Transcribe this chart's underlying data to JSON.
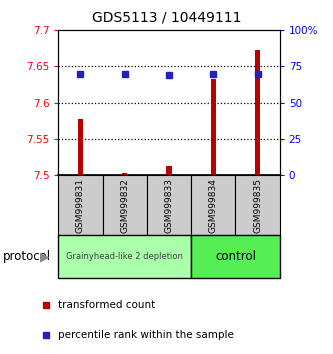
{
  "title": "GDS5113 / 10449111",
  "samples": [
    "GSM999831",
    "GSM999832",
    "GSM999833",
    "GSM999834",
    "GSM999835"
  ],
  "transformed_counts": [
    7.578,
    7.503,
    7.513,
    7.633,
    7.673
  ],
  "percentile_ranks": [
    70,
    70,
    69,
    70,
    70
  ],
  "ylim_left": [
    7.5,
    7.7
  ],
  "ylim_right": [
    0,
    100
  ],
  "yticks_left": [
    7.5,
    7.55,
    7.6,
    7.65,
    7.7
  ],
  "ytick_labels_left": [
    "7.5",
    "7.55",
    "7.6",
    "7.65",
    "7.7"
  ],
  "yticks_right": [
    0,
    25,
    50,
    75,
    100
  ],
  "ytick_labels_right": [
    "0",
    "25",
    "50",
    "75",
    "100%"
  ],
  "bar_color": "#bb0000",
  "dot_color": "#2222bb",
  "group1_label": "Grainyhead-like 2 depletion",
  "group2_label": "control",
  "group1_bg": "#aaffaa",
  "group2_bg": "#55ee55",
  "sample_bg": "#cccccc",
  "legend_bar_label": "transformed count",
  "legend_dot_label": "percentile rank within the sample",
  "protocol_label": "protocol"
}
